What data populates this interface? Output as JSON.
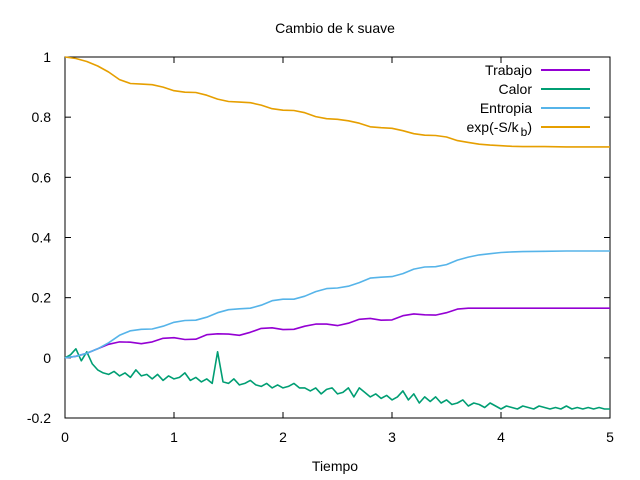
{
  "chart_data": {
    "type": "line",
    "title": "Cambio de k suave",
    "xlabel": "Tiempo",
    "ylabel": "",
    "xlim": [
      0,
      5
    ],
    "ylim": [
      -0.2,
      1
    ],
    "x_ticks": [
      "0",
      "1",
      "2",
      "3",
      "4",
      "5"
    ],
    "y_ticks": [
      "-0.2",
      "0",
      "0.2",
      "0.4",
      "0.6",
      "0.8",
      "1"
    ],
    "grid": false,
    "legend_position": "top-right",
    "series": [
      {
        "name": "Trabajo",
        "color": "#9400d3",
        "x": [
          0,
          0.1,
          0.2,
          0.3,
          0.4,
          0.5,
          0.6,
          0.7,
          0.8,
          0.9,
          1.0,
          1.1,
          1.2,
          1.3,
          1.4,
          1.5,
          1.6,
          1.7,
          1.8,
          1.9,
          2.0,
          2.1,
          2.2,
          2.3,
          2.4,
          2.5,
          2.6,
          2.7,
          2.8,
          2.9,
          3.0,
          3.1,
          3.2,
          3.3,
          3.4,
          3.5,
          3.6,
          3.7,
          3.8,
          3.9,
          4.0,
          4.2,
          4.4,
          4.6,
          4.8,
          5.0
        ],
        "y": [
          0,
          0.005,
          0.015,
          0.03,
          0.045,
          0.053,
          0.052,
          0.047,
          0.053,
          0.065,
          0.067,
          0.061,
          0.062,
          0.077,
          0.08,
          0.079,
          0.075,
          0.085,
          0.098,
          0.1,
          0.094,
          0.095,
          0.105,
          0.112,
          0.112,
          0.107,
          0.115,
          0.128,
          0.131,
          0.125,
          0.126,
          0.14,
          0.146,
          0.143,
          0.142,
          0.15,
          0.162,
          0.165,
          0.165,
          0.165,
          0.165,
          0.165,
          0.165,
          0.165,
          0.165,
          0.165
        ]
      },
      {
        "name": "Calor",
        "color": "#009e73",
        "x": [
          0,
          0.05,
          0.1,
          0.15,
          0.2,
          0.25,
          0.3,
          0.35,
          0.4,
          0.45,
          0.5,
          0.55,
          0.6,
          0.65,
          0.7,
          0.75,
          0.8,
          0.85,
          0.9,
          0.95,
          1.0,
          1.05,
          1.1,
          1.15,
          1.2,
          1.25,
          1.3,
          1.35,
          1.4,
          1.45,
          1.5,
          1.55,
          1.6,
          1.65,
          1.7,
          1.75,
          1.8,
          1.85,
          1.9,
          1.95,
          2.0,
          2.05,
          2.1,
          2.15,
          2.2,
          2.25,
          2.3,
          2.35,
          2.4,
          2.45,
          2.5,
          2.55,
          2.6,
          2.65,
          2.7,
          2.75,
          2.8,
          2.85,
          2.9,
          2.95,
          3.0,
          3.05,
          3.1,
          3.15,
          3.2,
          3.25,
          3.3,
          3.35,
          3.4,
          3.45,
          3.5,
          3.55,
          3.6,
          3.65,
          3.7,
          3.75,
          3.8,
          3.85,
          3.9,
          3.95,
          4.0,
          4.05,
          4.1,
          4.15,
          4.2,
          4.25,
          4.3,
          4.35,
          4.4,
          4.45,
          4.5,
          4.55,
          4.6,
          4.65,
          4.7,
          4.75,
          4.8,
          4.85,
          4.9,
          4.95,
          5.0
        ],
        "y": [
          0,
          0.01,
          0.03,
          -0.01,
          0.02,
          -0.02,
          -0.04,
          -0.05,
          -0.055,
          -0.045,
          -0.06,
          -0.05,
          -0.065,
          -0.04,
          -0.06,
          -0.055,
          -0.07,
          -0.055,
          -0.075,
          -0.06,
          -0.07,
          -0.065,
          -0.05,
          -0.075,
          -0.065,
          -0.08,
          -0.07,
          -0.085,
          0.02,
          -0.08,
          -0.085,
          -0.07,
          -0.09,
          -0.085,
          -0.075,
          -0.09,
          -0.095,
          -0.085,
          -0.1,
          -0.09,
          -0.1,
          -0.095,
          -0.085,
          -0.1,
          -0.1,
          -0.11,
          -0.1,
          -0.12,
          -0.105,
          -0.1,
          -0.12,
          -0.115,
          -0.1,
          -0.13,
          -0.1,
          -0.115,
          -0.13,
          -0.12,
          -0.135,
          -0.125,
          -0.14,
          -0.13,
          -0.11,
          -0.14,
          -0.12,
          -0.15,
          -0.13,
          -0.145,
          -0.13,
          -0.15,
          -0.14,
          -0.155,
          -0.15,
          -0.14,
          -0.16,
          -0.15,
          -0.155,
          -0.165,
          -0.15,
          -0.16,
          -0.17,
          -0.16,
          -0.165,
          -0.17,
          -0.16,
          -0.165,
          -0.17,
          -0.16,
          -0.165,
          -0.17,
          -0.165,
          -0.17,
          -0.16,
          -0.17,
          -0.165,
          -0.17,
          -0.165,
          -0.17,
          -0.165,
          -0.17,
          -0.17
        ]
      },
      {
        "name": "Entropia",
        "color": "#56b4e9",
        "x": [
          0,
          0.1,
          0.2,
          0.3,
          0.4,
          0.5,
          0.6,
          0.7,
          0.8,
          0.9,
          1.0,
          1.1,
          1.2,
          1.3,
          1.4,
          1.5,
          1.6,
          1.7,
          1.8,
          1.9,
          2.0,
          2.1,
          2.2,
          2.3,
          2.4,
          2.5,
          2.6,
          2.7,
          2.8,
          2.9,
          3.0,
          3.1,
          3.2,
          3.3,
          3.4,
          3.5,
          3.6,
          3.7,
          3.8,
          3.9,
          4.0,
          4.1,
          4.2,
          4.4,
          4.6,
          4.8,
          5.0
        ],
        "y": [
          0,
          0.005,
          0.015,
          0.03,
          0.05,
          0.075,
          0.09,
          0.095,
          0.096,
          0.105,
          0.118,
          0.124,
          0.125,
          0.135,
          0.15,
          0.16,
          0.163,
          0.165,
          0.175,
          0.19,
          0.195,
          0.195,
          0.205,
          0.22,
          0.23,
          0.232,
          0.238,
          0.25,
          0.265,
          0.268,
          0.27,
          0.28,
          0.295,
          0.302,
          0.303,
          0.31,
          0.325,
          0.335,
          0.342,
          0.346,
          0.35,
          0.352,
          0.353,
          0.354,
          0.355,
          0.355,
          0.355
        ]
      },
      {
        "name": "exp(-S/k b)",
        "color": "#e69f00",
        "x": [
          0,
          0.1,
          0.2,
          0.3,
          0.4,
          0.5,
          0.6,
          0.7,
          0.8,
          0.9,
          1.0,
          1.1,
          1.2,
          1.3,
          1.4,
          1.5,
          1.6,
          1.7,
          1.8,
          1.9,
          2.0,
          2.1,
          2.2,
          2.3,
          2.4,
          2.5,
          2.6,
          2.7,
          2.8,
          2.9,
          3.0,
          3.1,
          3.2,
          3.3,
          3.4,
          3.5,
          3.6,
          3.7,
          3.8,
          3.9,
          4.0,
          4.1,
          4.2,
          4.4,
          4.6,
          4.8,
          5.0
        ],
        "y": [
          1.0,
          0.995,
          0.985,
          0.97,
          0.95,
          0.925,
          0.912,
          0.91,
          0.908,
          0.9,
          0.888,
          0.883,
          0.882,
          0.873,
          0.86,
          0.852,
          0.85,
          0.848,
          0.84,
          0.828,
          0.823,
          0.822,
          0.815,
          0.802,
          0.795,
          0.793,
          0.788,
          0.78,
          0.768,
          0.765,
          0.763,
          0.755,
          0.745,
          0.74,
          0.739,
          0.734,
          0.722,
          0.716,
          0.71,
          0.707,
          0.705,
          0.703,
          0.702,
          0.702,
          0.701,
          0.701,
          0.701
        ]
      }
    ]
  }
}
